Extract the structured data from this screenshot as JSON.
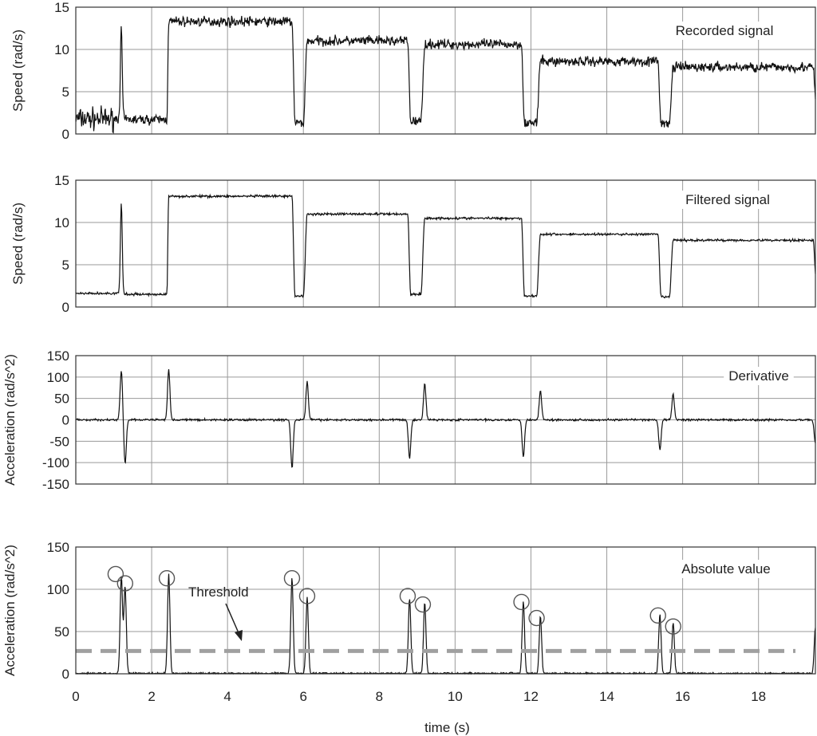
{
  "chart_data": [
    {
      "type": "line",
      "panel": "recorded",
      "annotation": "Recorded signal",
      "ylabel": "Speed (rad/s)",
      "ylim": [
        0,
        15
      ],
      "yticks": [
        0,
        5,
        10,
        15
      ],
      "xlim": [
        0,
        19.5
      ],
      "grid": true,
      "levels": [
        {
          "x0": 0.0,
          "x1": 1.05,
          "y": 1.8
        },
        {
          "x0": 1.35,
          "x1": 2.4,
          "y": 1.7
        },
        {
          "x0": 2.45,
          "x1": 5.7,
          "y": 13.3
        },
        {
          "x0": 6.1,
          "x1": 8.75,
          "y": 11.0
        },
        {
          "x0": 9.2,
          "x1": 11.75,
          "y": 10.6
        },
        {
          "x0": 12.25,
          "x1": 15.35,
          "y": 8.6
        },
        {
          "x0": 15.75,
          "x1": 19.45,
          "y": 7.9
        }
      ],
      "dips": [
        {
          "x0": 5.7,
          "x1": 6.1,
          "y": 1.3
        },
        {
          "x0": 8.75,
          "x1": 9.2,
          "y": 1.5
        },
        {
          "x0": 11.75,
          "x1": 12.25,
          "y": 1.3
        },
        {
          "x0": 15.35,
          "x1": 15.75,
          "y": 1.2
        }
      ],
      "spike": {
        "x": 1.2,
        "y": 12.3
      },
      "noise": 0.5
    },
    {
      "type": "line",
      "panel": "filtered",
      "annotation": "Filtered signal",
      "ylabel": "Speed (rad/s)",
      "ylim": [
        0,
        15
      ],
      "yticks": [
        0,
        5,
        10,
        15
      ],
      "xlim": [
        0,
        19.5
      ],
      "grid": true,
      "levels": [
        {
          "x0": 0.0,
          "x1": 1.05,
          "y": 1.6
        },
        {
          "x0": 1.35,
          "x1": 2.4,
          "y": 1.5
        },
        {
          "x0": 2.45,
          "x1": 5.7,
          "y": 13.1
        },
        {
          "x0": 6.1,
          "x1": 8.75,
          "y": 11.0
        },
        {
          "x0": 9.2,
          "x1": 11.75,
          "y": 10.5
        },
        {
          "x0": 12.25,
          "x1": 15.35,
          "y": 8.6
        },
        {
          "x0": 15.75,
          "x1": 19.45,
          "y": 7.9
        }
      ],
      "dips": [
        {
          "x0": 5.7,
          "x1": 6.1,
          "y": 1.3
        },
        {
          "x0": 8.75,
          "x1": 9.2,
          "y": 1.5
        },
        {
          "x0": 11.75,
          "x1": 12.25,
          "y": 1.3
        },
        {
          "x0": 15.35,
          "x1": 15.75,
          "y": 1.2
        }
      ],
      "spike": {
        "x": 1.2,
        "y": 12.4
      },
      "noise": 0.12
    },
    {
      "type": "line",
      "panel": "derivative",
      "annotation": "Derivative",
      "ylabel": "Acceleration (rad/s^2)",
      "ylim": [
        -150,
        150
      ],
      "yticks": [
        -150,
        -100,
        -50,
        0,
        50,
        100,
        150
      ],
      "xlim": [
        0,
        19.5
      ],
      "grid": true,
      "peaks": [
        {
          "x": 1.2,
          "y": 115
        },
        {
          "x": 1.3,
          "y": -103
        },
        {
          "x": 2.45,
          "y": 117
        },
        {
          "x": 5.7,
          "y": -113
        },
        {
          "x": 6.1,
          "y": 90
        },
        {
          "x": 8.8,
          "y": -90
        },
        {
          "x": 9.2,
          "y": 85
        },
        {
          "x": 11.8,
          "y": -85
        },
        {
          "x": 12.25,
          "y": 68
        },
        {
          "x": 15.4,
          "y": -70
        },
        {
          "x": 15.75,
          "y": 60
        },
        {
          "x": 19.5,
          "y": -55
        }
      ],
      "noise": 2
    },
    {
      "type": "line",
      "panel": "absolute",
      "annotation": "Absolute value",
      "ylabel": "Acceleration (rad/s^2)",
      "xlabel": "time (s)",
      "ylim": [
        0,
        150
      ],
      "yticks": [
        0,
        50,
        100,
        150
      ],
      "xlim": [
        0,
        19.5
      ],
      "xticks": [
        0,
        2,
        4,
        6,
        8,
        10,
        12,
        14,
        16,
        18
      ],
      "grid": true,
      "peaks": [
        {
          "x": 1.2,
          "y": 115
        },
        {
          "x": 1.3,
          "y": 103
        },
        {
          "x": 2.45,
          "y": 117
        },
        {
          "x": 5.7,
          "y": 113
        },
        {
          "x": 6.1,
          "y": 90
        },
        {
          "x": 8.8,
          "y": 90
        },
        {
          "x": 9.2,
          "y": 85
        },
        {
          "x": 11.8,
          "y": 85
        },
        {
          "x": 12.25,
          "y": 68
        },
        {
          "x": 15.4,
          "y": 70
        },
        {
          "x": 15.75,
          "y": 60
        },
        {
          "x": 19.5,
          "y": 55
        }
      ],
      "detected": [
        {
          "x": 1.05,
          "y": 118
        },
        {
          "x": 1.3,
          "y": 107
        },
        {
          "x": 2.4,
          "y": 113
        },
        {
          "x": 5.7,
          "y": 113
        },
        {
          "x": 6.1,
          "y": 92
        },
        {
          "x": 8.75,
          "y": 92
        },
        {
          "x": 9.15,
          "y": 82
        },
        {
          "x": 11.75,
          "y": 85
        },
        {
          "x": 12.15,
          "y": 66
        },
        {
          "x": 15.35,
          "y": 69
        },
        {
          "x": 15.75,
          "y": 56
        }
      ],
      "threshold": {
        "label": "Threshold",
        "y": 27,
        "color": "#a0a0a0"
      },
      "noise": 2
    }
  ],
  "colors": {
    "line": "#111111",
    "grid": "#9a9a9a",
    "frame": "#333333",
    "marker": "#555555"
  }
}
